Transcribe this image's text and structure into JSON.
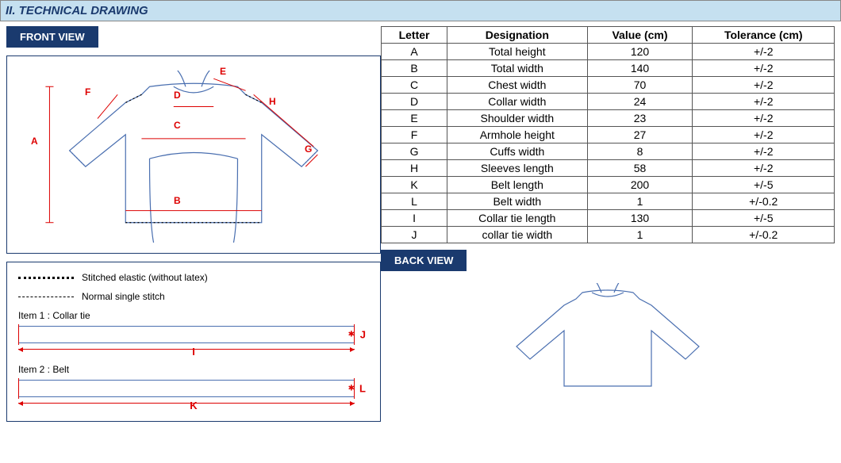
{
  "header": {
    "title": "II. TECHNICAL DRAWING"
  },
  "front_view": {
    "label": "FRONT VIEW"
  },
  "back_view": {
    "label": "BACK VIEW"
  },
  "legend": {
    "stitched": "Stitched elastic (without latex)",
    "normal": "Normal single stitch",
    "item1_label": "Item 1 : Collar tie",
    "item2_label": "Item 2 : Belt",
    "item1_h": "I",
    "item1_v": "J",
    "item2_h": "K",
    "item2_v": "L"
  },
  "table": {
    "columns": [
      "Letter",
      "Designation",
      "Value (cm)",
      "Tolerance (cm)"
    ],
    "rows": [
      [
        "A",
        "Total height",
        "120",
        "+/-2"
      ],
      [
        "B",
        "Total width",
        "140",
        "+/-2"
      ],
      [
        "C",
        "Chest width",
        "70",
        "+/-2"
      ],
      [
        "D",
        "Collar width",
        "24",
        "+/-2"
      ],
      [
        "E",
        "Shoulder width",
        "23",
        "+/-2"
      ],
      [
        "F",
        "Armhole height",
        "27",
        "+/-2"
      ],
      [
        "G",
        "Cuffs width",
        "8",
        "+/-2"
      ],
      [
        "H",
        "Sleeves length",
        "58",
        "+/-2"
      ],
      [
        "K",
        "Belt length",
        "200",
        "+/-5"
      ],
      [
        "L",
        "Belt width",
        "1",
        "+/-0.2"
      ],
      [
        "I",
        "Collar tie length",
        "130",
        "+/-5"
      ],
      [
        "J",
        "collar tie width",
        "1",
        "+/-0.2"
      ]
    ]
  },
  "dim_letters": {
    "A": "A",
    "B": "B",
    "C": "C",
    "D": "D",
    "E": "E",
    "F": "F",
    "G": "G",
    "H": "H"
  },
  "colors": {
    "header_bg": "#c5e0f0",
    "navy": "#1a3a6e",
    "red": "#d00000",
    "garment_line": "#4a6fb0"
  }
}
